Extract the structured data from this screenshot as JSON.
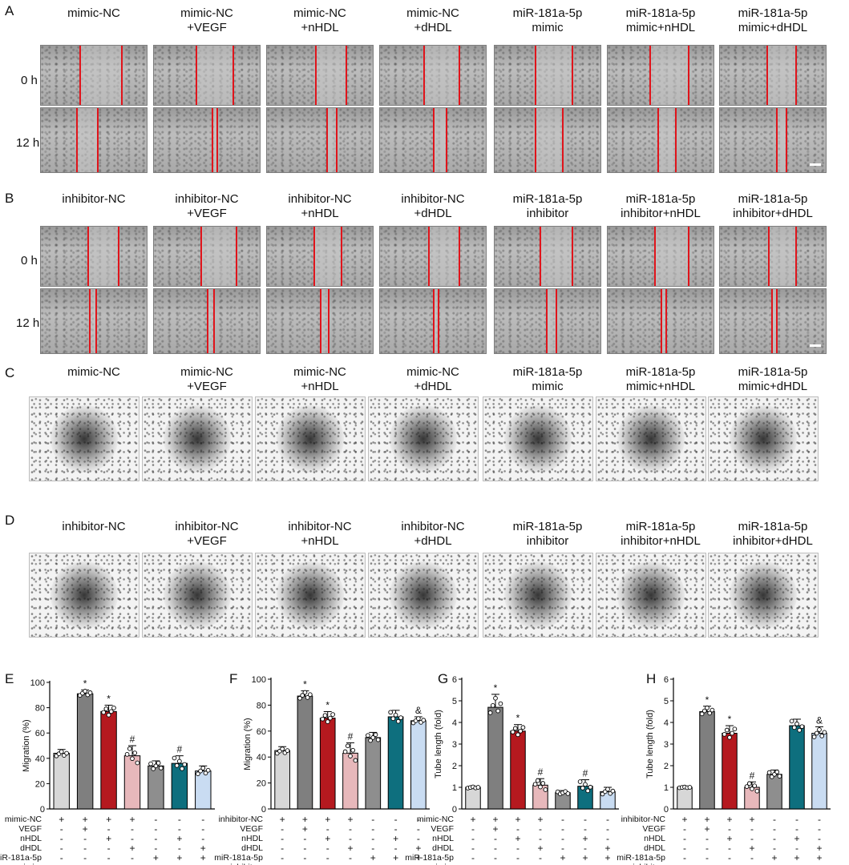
{
  "panels": {
    "A": "A",
    "B": "B",
    "C": "C",
    "D": "D",
    "E": "E",
    "F": "F",
    "G": "G",
    "H": "H"
  },
  "mimic_groups": [
    "mimic-NC",
    "mimic-NC\n+VEGF",
    "mimic-NC\n+nHDL",
    "mimic-NC\n+dHDL",
    "miR-181a-5p\nmimic",
    "miR-181a-5p\nmimic+nHDL",
    "miR-181a-5p\nmimic+dHDL"
  ],
  "inhibitor_groups": [
    "inhibitor-NC",
    "inhibitor-NC\n+VEGF",
    "inhibitor-NC\n+nHDL",
    "inhibitor-NC\n+dHDL",
    "miR-181a-5p\ninhibitor",
    "miR-181a-5p\ninhibitor+nHDL",
    "miR-181a-5p\ninhibitor+dHDL"
  ],
  "time_labels": [
    "0 h",
    "12 h"
  ],
  "colors": {
    "bars": [
      "#d7d7d7",
      "#7f7f7f",
      "#b5191f",
      "#e7b8bb",
      "#8e8e8e",
      "#0e6f7e",
      "#c9dcf2"
    ],
    "redline": "#e0141b"
  },
  "chart_data": [
    {
      "panel": "E",
      "type": "bar",
      "ylabel": "Migration (%)",
      "ylim": [
        0,
        100
      ],
      "yticks": [
        0,
        20,
        40,
        60,
        80,
        100
      ],
      "values": [
        44,
        91,
        77,
        42,
        34,
        36,
        30
      ],
      "errors": [
        3,
        3,
        5,
        8,
        4,
        6,
        4
      ],
      "annotations": [
        "",
        "*",
        "*",
        "#",
        "",
        "#",
        ""
      ],
      "rows": [
        {
          "label": "mimic-NC",
          "signs": [
            "+",
            "+",
            "+",
            "+",
            "-",
            "-",
            "-"
          ]
        },
        {
          "label": "VEGF",
          "signs": [
            "-",
            "+",
            "-",
            "-",
            "-",
            "-",
            "-"
          ]
        },
        {
          "label": "nHDL",
          "signs": [
            "-",
            "-",
            "+",
            "-",
            "-",
            "+",
            "-"
          ]
        },
        {
          "label": "dHDL",
          "signs": [
            "-",
            "-",
            "-",
            "+",
            "-",
            "-",
            "+"
          ]
        },
        {
          "label": "miR-181a-5p",
          "signs": [
            "-",
            "-",
            "-",
            "-",
            "+",
            "+",
            "+"
          ]
        }
      ],
      "last_label": "mimic"
    },
    {
      "panel": "F",
      "type": "bar",
      "ylabel": "Migration (%)",
      "ylim": [
        0,
        100
      ],
      "yticks": [
        0,
        20,
        40,
        60,
        80,
        100
      ],
      "values": [
        45,
        87,
        70,
        43,
        55,
        71,
        68
      ],
      "errors": [
        3,
        4,
        5,
        8,
        4,
        5,
        3
      ],
      "annotations": [
        "",
        "*",
        "*",
        "#",
        "",
        "",
        "&"
      ],
      "rows": [
        {
          "label": "inhibitor-NC",
          "signs": [
            "+",
            "+",
            "+",
            "+",
            "-",
            "-",
            "-"
          ]
        },
        {
          "label": "VEGF",
          "signs": [
            "-",
            "+",
            "-",
            "-",
            "-",
            "-",
            "-"
          ]
        },
        {
          "label": "nHDL",
          "signs": [
            "-",
            "-",
            "+",
            "-",
            "-",
            "+",
            "-"
          ]
        },
        {
          "label": "dHDL",
          "signs": [
            "-",
            "-",
            "-",
            "+",
            "-",
            "-",
            "+"
          ]
        },
        {
          "label": "miR-181a-5p",
          "signs": [
            "-",
            "-",
            "-",
            "-",
            "+",
            "+",
            "+"
          ]
        }
      ],
      "last_label": "inhibitor"
    },
    {
      "panel": "G",
      "type": "bar",
      "ylabel": "Tube length (fold)",
      "ylim": [
        0,
        6
      ],
      "yticks": [
        0,
        1,
        2,
        3,
        4,
        5,
        6
      ],
      "values": [
        1.0,
        4.7,
        3.6,
        1.1,
        0.75,
        1.05,
        0.8
      ],
      "errors": [
        0.05,
        0.6,
        0.3,
        0.3,
        0.1,
        0.3,
        0.2
      ],
      "annotations": [
        "",
        "*",
        "*",
        "#",
        "",
        "#",
        ""
      ],
      "rows": [
        {
          "label": "mimic-NC",
          "signs": [
            "+",
            "+",
            "+",
            "+",
            "-",
            "-",
            "-"
          ]
        },
        {
          "label": "VEGF",
          "signs": [
            "-",
            "+",
            "-",
            "-",
            "-",
            "-",
            "-"
          ]
        },
        {
          "label": "nHDL",
          "signs": [
            "-",
            "-",
            "+",
            "-",
            "-",
            "+",
            "-"
          ]
        },
        {
          "label": "dHDL",
          "signs": [
            "-",
            "-",
            "-",
            "+",
            "-",
            "-",
            "+"
          ]
        },
        {
          "label": "miR-181a-5p",
          "signs": [
            "-",
            "-",
            "-",
            "-",
            "+",
            "+",
            "+"
          ]
        }
      ],
      "last_label": "mimic"
    },
    {
      "panel": "H",
      "type": "bar",
      "ylabel": "Tube length (fold)",
      "ylim": [
        0,
        6
      ],
      "yticks": [
        0,
        1,
        2,
        3,
        4,
        5,
        6
      ],
      "values": [
        1.0,
        4.5,
        3.5,
        1.0,
        1.6,
        3.85,
        3.5
      ],
      "errors": [
        0.03,
        0.25,
        0.35,
        0.25,
        0.2,
        0.3,
        0.3
      ],
      "annotations": [
        "",
        "*",
        "*",
        "#",
        "",
        "",
        "&"
      ],
      "rows": [
        {
          "label": "inhibitor-NC",
          "signs": [
            "+",
            "+",
            "+",
            "+",
            "-",
            "-",
            "-"
          ]
        },
        {
          "label": "VEGF",
          "signs": [
            "-",
            "+",
            "-",
            "-",
            "-",
            "-",
            "-"
          ]
        },
        {
          "label": "nHDL",
          "signs": [
            "-",
            "-",
            "+",
            "-",
            "-",
            "+",
            "-"
          ]
        },
        {
          "label": "dHDL",
          "signs": [
            "-",
            "-",
            "-",
            "+",
            "-",
            "-",
            "+"
          ]
        },
        {
          "label": "miR-181a-5p",
          "signs": [
            "-",
            "-",
            "-",
            "-",
            "+",
            "+",
            "+"
          ]
        }
      ],
      "last_label": "inhibitor"
    }
  ]
}
